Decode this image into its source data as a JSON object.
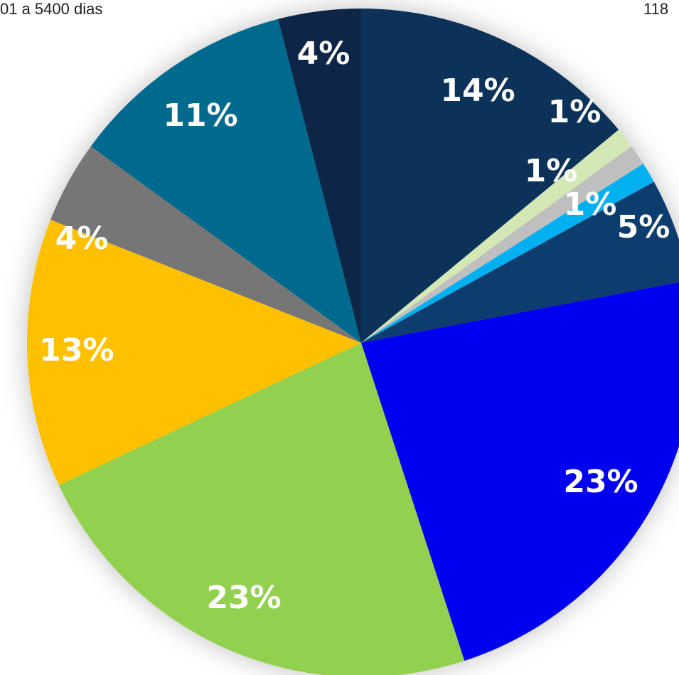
{
  "chart_data": {
    "type": "pie",
    "annotations": [
      "01 a 5400 dias",
      "118"
    ],
    "values": [
      14,
      1,
      1,
      1,
      5,
      23,
      23,
      13,
      4,
      11,
      4
    ],
    "value_labels": [
      "14%",
      "1%",
      "1%",
      "1%",
      "5%",
      "23%",
      "23%",
      "13%",
      "4%",
      "11%",
      "4%"
    ],
    "colors": [
      "#10325a",
      "#d3e8b5",
      "#bfbfbf",
      "#00b0f0",
      "#0d3d6e",
      "#0000f0",
      "#92d050",
      "#ffc000",
      "#767676",
      "#006a8e",
      "#0a2846"
    ]
  }
}
